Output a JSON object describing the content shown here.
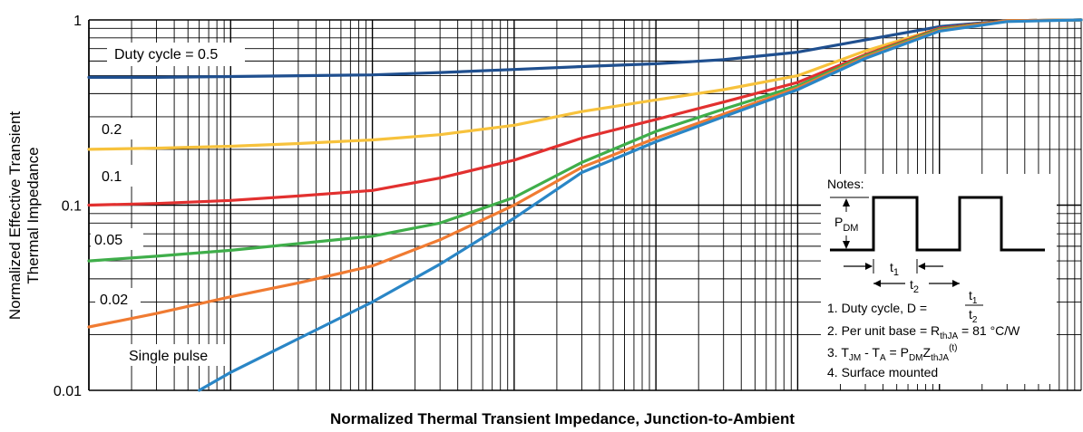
{
  "chart_data": {
    "type": "line",
    "xlabel": "Normalized Thermal Transient Impedance, Junction-to-Ambient",
    "ylabel": [
      "Normalized Effective Transient",
      "Thermal Impedance"
    ],
    "x_scale": "log",
    "y_scale": "log",
    "xlim": [
      0.0001,
      1000
    ],
    "ylim": [
      0.01,
      1
    ],
    "y_ticks": [
      {
        "value": 1,
        "label": "1"
      },
      {
        "value": 0.1,
        "label": "0.1"
      },
      {
        "value": 0.01,
        "label": "0.01"
      }
    ],
    "grid": true,
    "series": [
      {
        "name": "Duty cycle = 0.5",
        "color": "#1f4f8f",
        "x": [
          0.0001,
          0.0003,
          0.001,
          0.003,
          0.01,
          0.03,
          0.1,
          0.3,
          1,
          3,
          10,
          30,
          100,
          300,
          1000
        ],
        "y": [
          0.49,
          0.49,
          0.495,
          0.5,
          0.505,
          0.52,
          0.54,
          0.56,
          0.58,
          0.61,
          0.67,
          0.78,
          0.92,
          0.99,
          1.0
        ]
      },
      {
        "name": "0.2",
        "color": "#f7c23c",
        "x": [
          0.0001,
          0.0003,
          0.001,
          0.003,
          0.01,
          0.03,
          0.1,
          0.3,
          1,
          3,
          10,
          30,
          100,
          300,
          1000
        ],
        "y": [
          0.2,
          0.203,
          0.208,
          0.215,
          0.225,
          0.24,
          0.27,
          0.32,
          0.37,
          0.42,
          0.5,
          0.68,
          0.9,
          0.99,
          1.0
        ]
      },
      {
        "name": "0.1",
        "color": "#e2302f",
        "x": [
          0.0001,
          0.0003,
          0.001,
          0.003,
          0.01,
          0.03,
          0.1,
          0.3,
          1,
          3,
          10,
          30,
          100,
          300,
          1000
        ],
        "y": [
          0.1,
          0.102,
          0.106,
          0.112,
          0.12,
          0.14,
          0.175,
          0.23,
          0.29,
          0.36,
          0.46,
          0.65,
          0.9,
          0.99,
          1.0
        ]
      },
      {
        "name": "0.05",
        "color": "#3fae4a",
        "x": [
          0.0001,
          0.0003,
          0.001,
          0.003,
          0.01,
          0.03,
          0.1,
          0.3,
          1,
          3,
          10,
          30,
          100,
          300,
          1000
        ],
        "y": [
          0.05,
          0.053,
          0.057,
          0.062,
          0.068,
          0.08,
          0.11,
          0.17,
          0.25,
          0.33,
          0.44,
          0.64,
          0.89,
          0.99,
          1.0
        ]
      },
      {
        "name": "0.02",
        "color": "#f07b32",
        "x": [
          0.0001,
          0.0003,
          0.001,
          0.003,
          0.01,
          0.03,
          0.1,
          0.3,
          1,
          3,
          10,
          30,
          100,
          300,
          1000
        ],
        "y": [
          0.022,
          0.026,
          0.032,
          0.038,
          0.047,
          0.065,
          0.1,
          0.16,
          0.23,
          0.31,
          0.43,
          0.63,
          0.88,
          0.99,
          1.0
        ]
      },
      {
        "name": "Single pulse",
        "color": "#2a86c6",
        "x": [
          0.0006,
          0.001,
          0.003,
          0.01,
          0.03,
          0.1,
          0.3,
          1,
          3,
          10,
          30,
          100,
          300,
          1000
        ],
        "y": [
          0.01,
          0.0125,
          0.019,
          0.03,
          0.048,
          0.085,
          0.15,
          0.22,
          0.3,
          0.42,
          0.62,
          0.87,
          0.98,
          1.0
        ]
      }
    ]
  },
  "notes": {
    "title": "Notes:",
    "pdm_label": "P",
    "pdm_sub": "DM",
    "t1_label": "t",
    "t1_sub": "1",
    "t2_label": "t",
    "t2_sub": "2",
    "note1": "1. Duty cycle, D =",
    "note1_num": "t",
    "note1_num_sub": "1",
    "note1_den": "t",
    "note1_den_sub": "2",
    "note2_pre": "2. Per unit base = R",
    "note2_sub": "thJA",
    "note2_post": " = 81 °C/W",
    "note3_a": "3. T",
    "note3_a_sub": "JM",
    "note3_b": " - T",
    "note3_b_sub": "A",
    "note3_c": " = P",
    "note3_c_sub": "DM",
    "note3_d": "Z",
    "note3_d_sub": "thJA",
    "note3_sup": "(t)",
    "note4": "4. Surface mounted"
  },
  "style": {
    "grid_color": "#000000",
    "background": "#ffffff"
  }
}
